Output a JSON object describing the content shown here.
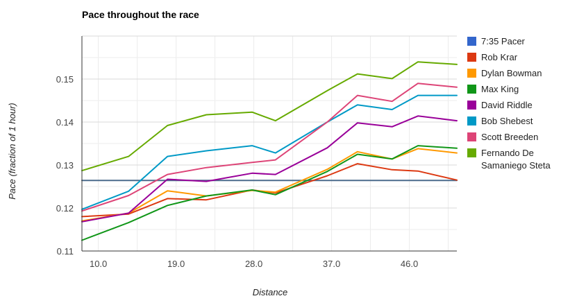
{
  "chart_data": {
    "type": "line",
    "title": "Pace throughout the race",
    "xlabel": "Distance",
    "ylabel": "Pace (fraction of 1 hour)",
    "xlim": [
      8.1,
      51.5
    ],
    "ylim": [
      0.11,
      0.16
    ],
    "x_ticks": [
      10,
      19,
      28,
      37,
      46
    ],
    "x_tick_labels": [
      "10.0",
      "19.0",
      "28.0",
      "37.0",
      "46.0"
    ],
    "y_ticks": [
      0.11,
      0.12,
      0.13,
      0.14,
      0.15
    ],
    "y_tick_labels": [
      "0.11",
      "0.12",
      "0.13",
      "0.14",
      "0.15"
    ],
    "grid": true,
    "legend_position": "right",
    "series": [
      {
        "name": "7:35 Pacer",
        "color": "#3366cc",
        "display_color": "#4a6a8c",
        "x": [
          8.1,
          51.5
        ],
        "y": [
          0.1264,
          0.1264
        ]
      },
      {
        "name": "Rob Krar",
        "color": "#dc3912",
        "x": [
          8.1,
          13.5,
          18.0,
          22.5,
          27.8,
          30.5,
          36.5,
          40.0,
          44.0,
          47.0,
          51.5
        ],
        "y": [
          0.118,
          0.1186,
          0.1222,
          0.1219,
          0.1242,
          0.1235,
          0.1275,
          0.1303,
          0.1289,
          0.1286,
          0.1265
        ]
      },
      {
        "name": "Dylan Bowman",
        "color": "#ff9900",
        "x": [
          8.1,
          13.5,
          18.0,
          22.5,
          27.8,
          30.5,
          36.5,
          40.0,
          44.0,
          47.0,
          51.5
        ],
        "y": [
          0.117,
          0.1188,
          0.124,
          0.1228,
          0.1241,
          0.1237,
          0.129,
          0.1331,
          0.1314,
          0.1338,
          0.1328
        ]
      },
      {
        "name": "Max King",
        "color": "#109618",
        "x": [
          8.1,
          13.5,
          18.0,
          22.5,
          27.8,
          30.5,
          36.5,
          40.0,
          44.0,
          47.0,
          51.5
        ],
        "y": [
          0.1125,
          0.1166,
          0.1206,
          0.1228,
          0.1242,
          0.1231,
          0.1285,
          0.1325,
          0.1314,
          0.1345,
          0.1339
        ]
      },
      {
        "name": "David Riddle",
        "color": "#990099",
        "x": [
          8.1,
          13.5,
          18.0,
          22.5,
          27.8,
          30.5,
          36.5,
          40.0,
          44.0,
          47.0,
          51.5
        ],
        "y": [
          0.1168,
          0.1188,
          0.1267,
          0.1262,
          0.1281,
          0.1278,
          0.134,
          0.1398,
          0.1389,
          0.1414,
          0.1403
        ]
      },
      {
        "name": "Bob Shebest",
        "color": "#0099c6",
        "x": [
          8.1,
          13.5,
          18.0,
          22.5,
          27.8,
          30.5,
          36.5,
          40.0,
          44.0,
          47.0,
          51.5
        ],
        "y": [
          0.1197,
          0.1239,
          0.132,
          0.1333,
          0.1345,
          0.1328,
          0.14,
          0.144,
          0.1429,
          0.1462,
          0.1462
        ]
      },
      {
        "name": "Scott Breeden",
        "color": "#dd4477",
        "x": [
          8.1,
          13.5,
          18.0,
          22.5,
          27.8,
          30.5,
          36.5,
          40.0,
          44.0,
          47.0,
          51.5
        ],
        "y": [
          0.1193,
          0.1229,
          0.1278,
          0.1294,
          0.1306,
          0.1312,
          0.14,
          0.1462,
          0.1448,
          0.149,
          0.1481
        ]
      },
      {
        "name": "Fernando De Samaniego Steta",
        "color": "#66aa00",
        "label_lines": [
          "Fernando De",
          "Samaniego Steta"
        ],
        "x": [
          8.1,
          13.5,
          18.0,
          22.5,
          27.8,
          30.5,
          36.5,
          40.0,
          44.0,
          47.0,
          51.5
        ],
        "y": [
          0.1287,
          0.132,
          0.1392,
          0.1417,
          0.1423,
          0.1403,
          0.1473,
          0.1512,
          0.1501,
          0.154,
          0.1534
        ]
      }
    ]
  }
}
